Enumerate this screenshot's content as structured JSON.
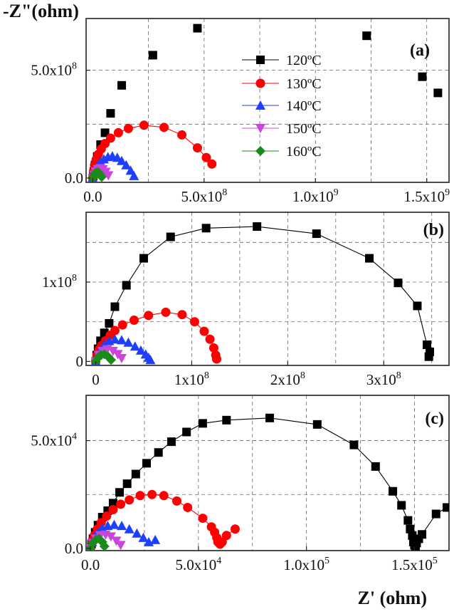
{
  "chart_data": [
    {
      "panel_label": "(a)",
      "type": "scatter",
      "ylabel": "-Z\"(ohm)",
      "xlim": [
        -30000000.0,
        1600000000.0
      ],
      "ylim": [
        -20000000.0,
        740000000.0
      ],
      "xticks": [
        {
          "v": 0,
          "m": "0.0",
          "e": ""
        },
        {
          "v": 500000000.0,
          "m": "5.0x10",
          "e": "8"
        },
        {
          "v": 1000000000.0,
          "m": "1.0x10",
          "e": "9"
        },
        {
          "v": 1500000000.0,
          "m": "1.5x10",
          "e": "9"
        }
      ],
      "yticks": [
        {
          "v": 0,
          "m": "0.0",
          "e": ""
        },
        {
          "v": 500000000.0,
          "m": "5.0x10",
          "e": "8"
        }
      ],
      "xgrid": [
        250000000.0,
        500000000.0,
        750000000.0,
        1000000000.0,
        1250000000.0,
        1500000000.0
      ],
      "ygrid": [
        250000000.0,
        500000000.0
      ],
      "series": [
        {
          "name": "120ºC",
          "color": "#000000",
          "marker": "square",
          "line": false,
          "x": [
            0,
            2000000.0,
            5000000.0,
            10000000.0,
            20000000.0,
            35000000.0,
            55000000.0,
            80000000.0,
            130000000.0,
            270000000.0,
            470000000.0,
            1230000000.0,
            1480000000.0,
            1550000000.0
          ],
          "y": [
            0,
            10000000.0,
            30000000.0,
            60000000.0,
            100000000.0,
            155000000.0,
            210000000.0,
            300000000.0,
            430000000.0,
            570000000.0,
            695000000.0,
            660000000.0,
            470000000.0,
            395000000.0
          ]
        },
        {
          "name": "130ºC",
          "color": "#ff0000",
          "marker": "circle",
          "line": true,
          "x": [
            0,
            3000000.0,
            8000000.0,
            15000000.0,
            25000000.0,
            38000000.0,
            55000000.0,
            80000000.0,
            115000000.0,
            160000000.0,
            230000000.0,
            320000000.0,
            400000000.0,
            470000000.0,
            510000000.0,
            535000000.0
          ],
          "y": [
            0,
            30000000.0,
            60000000.0,
            85000000.0,
            110000000.0,
            135000000.0,
            160000000.0,
            185000000.0,
            210000000.0,
            230000000.0,
            245000000.0,
            235000000.0,
            200000000.0,
            140000000.0,
            95000000.0,
            65000000.0
          ]
        },
        {
          "name": "140ºC",
          "color": "#1f3fff",
          "marker": "triangle-up",
          "line": false,
          "x": [
            0,
            5000000.0,
            12000000.0,
            22000000.0,
            35000000.0,
            50000000.0,
            68000000.0,
            88000000.0,
            110000000.0,
            130000000.0,
            150000000.0,
            170000000.0,
            185000000.0
          ],
          "y": [
            0,
            20000000.0,
            40000000.0,
            58000000.0,
            75000000.0,
            88000000.0,
            98000000.0,
            102000000.0,
            95000000.0,
            80000000.0,
            60000000.0,
            35000000.0,
            10000000.0
          ]
        },
        {
          "name": "150ºC",
          "color": "#cc44dd",
          "marker": "triangle-down",
          "line": false,
          "x": [
            0,
            5000000.0,
            12000000.0,
            22000000.0,
            33000000.0,
            45000000.0,
            58000000.0,
            70000000.0
          ],
          "y": [
            0,
            15000000.0,
            30000000.0,
            40000000.0,
            45000000.0,
            40000000.0,
            28000000.0,
            12000000.0
          ]
        },
        {
          "name": "160ºC",
          "color": "#1a8a1a",
          "marker": "diamond",
          "line": true,
          "x": [
            0,
            4000000.0,
            10000000.0,
            18000000.0,
            26000000.0,
            33000000.0,
            40000000.0
          ],
          "y": [
            0,
            12000000.0,
            22000000.0,
            28000000.0,
            26000000.0,
            17000000.0,
            5000000.0
          ]
        }
      ],
      "legend": {
        "placement": "top-center",
        "entries": [
          "120ºC",
          "130ºC",
          "140ºC",
          "150ºC",
          "160ºC"
        ]
      }
    },
    {
      "panel_label": "(b)",
      "type": "scatter",
      "xlim": [
        -10000000.0,
        368000000.0
      ],
      "ylim": [
        -5000000.0,
        188000000.0
      ],
      "xticks": [
        {
          "v": 0,
          "m": "0",
          "e": ""
        },
        {
          "v": 100000000.0,
          "m": "1x10",
          "e": "8"
        },
        {
          "v": 200000000.0,
          "m": "2x10",
          "e": "8"
        },
        {
          "v": 300000000.0,
          "m": "3x10",
          "e": "8"
        }
      ],
      "yticks": [
        {
          "v": 0,
          "m": "0",
          "e": ""
        },
        {
          "v": 100000000.0,
          "m": "1x10",
          "e": "8"
        }
      ],
      "xgrid": [
        50000000.0,
        100000000.0,
        150000000.0,
        200000000.0,
        250000000.0,
        300000000.0,
        350000000.0
      ],
      "ygrid": [
        50000000.0,
        100000000.0,
        150000000.0
      ],
      "series": [
        {
          "name": "120ºC",
          "color": "#000000",
          "marker": "square",
          "line": true,
          "x": [
            0,
            1000000.0,
            2500000.0,
            5000000.0,
            9000000.0,
            14000000.0,
            20000000.0,
            32000000.0,
            50000000.0,
            78000000.0,
            115000000.0,
            168000000.0,
            230000000.0,
            285000000.0,
            315000000.0,
            335000000.0,
            345000000.0,
            348000000.0,
            347000000.0
          ],
          "y": [
            0,
            8000000.0,
            16000000.0,
            26000000.0,
            36000000.0,
            48000000.0,
            69000000.0,
            96000000.0,
            130000000.0,
            157000000.0,
            168000000.0,
            170000000.0,
            161000000.0,
            130000000.0,
            99000000.0,
            70000000.0,
            21000000.0,
            12000000.0,
            6000000.0
          ]
        },
        {
          "name": "130ºC",
          "color": "#ff0000",
          "marker": "circle",
          "line": true,
          "x": [
            0,
            1500000.0,
            3500000.0,
            6000000.0,
            10000000.0,
            15000000.0,
            20000000.0,
            28000000.0,
            40000000.0,
            55000000.0,
            73000000.0,
            90000000.0,
            103000000.0,
            113000000.0,
            119000000.0,
            123000000.0,
            125000000.0,
            126000000.0
          ],
          "y": [
            0,
            8000000.0,
            15000000.0,
            20000000.0,
            26000000.0,
            33000000.0,
            39000000.0,
            46000000.0,
            52000000.0,
            58000000.0,
            62000000.0,
            59000000.0,
            50000000.0,
            38000000.0,
            28000000.0,
            17000000.0,
            8000000.0,
            3000000.0
          ]
        },
        {
          "name": "140ºC",
          "color": "#1f3fff",
          "marker": "triangle-up",
          "line": false,
          "x": [
            0,
            2000000.0,
            5000000.0,
            9000000.0,
            14000000.0,
            20000000.0,
            27000000.0,
            34000000.0,
            41000000.0,
            47000000.0,
            52000000.0,
            55000000.0,
            57000000.0
          ],
          "y": [
            0,
            8000000.0,
            15000000.0,
            21000000.0,
            26000000.0,
            28000000.0,
            27000000.0,
            24000000.0,
            19000000.0,
            14000000.0,
            9000000.0,
            5000000.0,
            2000000.0
          ]
        },
        {
          "name": "150ºC",
          "color": "#cc44dd",
          "marker": "triangle-down",
          "line": false,
          "x": [
            0,
            3000000.0,
            7000000.0,
            12000000.0,
            18000000.0,
            23000000.0,
            27000000.0
          ],
          "y": [
            0,
            8000000.0,
            13000000.0,
            15000000.0,
            13000000.0,
            9000000.0,
            4000000.0
          ]
        },
        {
          "name": "160ºC",
          "color": "#1a8a1a",
          "marker": "diamond",
          "line": true,
          "x": [
            0,
            2500000.0,
            5500000.0,
            9000000.0,
            13000000.0,
            16000000.0
          ],
          "y": [
            0,
            5000000.0,
            8000000.0,
            9000000.0,
            6000000.0,
            2000000.0
          ]
        }
      ]
    },
    {
      "panel_label": "(c)",
      "type": "scatter",
      "xlabel": "Z' (ohm)",
      "xlim": [
        -2000.0,
        166000.0
      ],
      "ylim": [
        -1000.0,
        71000.0
      ],
      "xticks": [
        {
          "v": 0,
          "m": "0.0",
          "e": ""
        },
        {
          "v": 50000.0,
          "m": "5.0x10",
          "e": "4"
        },
        {
          "v": 100000.0,
          "m": "1.0x10",
          "e": "5"
        },
        {
          "v": 150000.0,
          "m": "1.5x10",
          "e": "5"
        }
      ],
      "yticks": [
        {
          "v": 0,
          "m": "0.0",
          "e": ""
        },
        {
          "v": 50000.0,
          "m": "5.0x10",
          "e": "4"
        }
      ],
      "xgrid": [
        25000.0,
        50000.0,
        75000.0,
        100000.0,
        125000.0,
        150000.0
      ],
      "ygrid": [
        25000.0,
        50000.0
      ],
      "series": [
        {
          "name": "120ºC",
          "color": "#000000",
          "marker": "square",
          "line": true,
          "x": [
            0,
            500,
            1200,
            2200,
            3500,
            5500,
            8000,
            10500.0,
            13500.0,
            17000.0,
            21000.0,
            26000.0,
            31500.0,
            37500.0,
            44500.0,
            52000.0,
            63000.0,
            83000.0,
            105000.0,
            122000.0,
            132000.0,
            140000.0,
            144000.0,
            147000.0,
            148000.0,
            149000.0,
            149500.0,
            150000.0,
            150500.0,
            151000.0,
            152000.0,
            153500.0,
            160000.0,
            165000.0
          ],
          "y": [
            0,
            2000,
            4500,
            7500,
            10800.0,
            14500.0,
            17500.0,
            21000.0,
            26000.0,
            30000.0,
            34500.0,
            39500.0,
            44500.0,
            49500.0,
            54000.0,
            58000.0,
            59500.0,
            60500.0,
            57500.0,
            48000.0,
            38000.0,
            26500.0,
            20000.0,
            13000.0,
            9000,
            6000,
            3000,
            1500,
            0,
            2500,
            4500,
            6500,
            16000.0,
            19000.0
          ]
        },
        {
          "name": "130ºC",
          "color": "#ff0000",
          "marker": "circle",
          "line": true,
          "x": [
            0,
            800,
            1800,
            3200,
            5000,
            7500,
            10500.0,
            14000.0,
            18000.0,
            23000.0,
            28500.0,
            34000.0,
            40000.0,
            45000.0,
            52000.0,
            56000.0,
            57500.0,
            58500.0,
            59000.0,
            60000.0,
            61000.0,
            63000.0,
            67000.0
          ],
          "y": [
            0,
            3500,
            6000,
            9000,
            12000.0,
            15000.0,
            18000.0,
            20500.0,
            22500.0,
            24500.0,
            25000.0,
            24500.0,
            22000.0,
            19000.0,
            14000.0,
            10000.0,
            7500,
            5000,
            3000,
            2000,
            3000,
            6000,
            9000
          ]
        },
        {
          "name": "140ºC",
          "color": "#1f3fff",
          "marker": "triangle-up",
          "line": false,
          "x": [
            0,
            800,
            2000,
            3500,
            5500,
            8000,
            11000.0,
            14500.0,
            18000.0,
            21500.0,
            24500.0,
            27000.0,
            30000.0
          ],
          "y": [
            0,
            3000,
            5500,
            7500,
            9500,
            10500.0,
            11000.0,
            10500.0,
            9000,
            7000,
            5000,
            3000,
            4000
          ]
        },
        {
          "name": "150ºC",
          "color": "#cc44dd",
          "marker": "triangle-down",
          "line": false,
          "x": [
            0,
            1000,
            2500,
            4500,
            7000,
            9500,
            12000.0,
            14000.0
          ],
          "y": [
            0,
            2500,
            4500,
            6000,
            6300,
            5500,
            3500,
            1500
          ]
        },
        {
          "name": "160ºC",
          "color": "#1a8a1a",
          "marker": "diamond",
          "line": true,
          "x": [
            0,
            1000,
            2500,
            4000,
            5500,
            6500
          ],
          "y": [
            0,
            2500,
            4000,
            4500,
            3000,
            1000
          ]
        }
      ]
    }
  ]
}
